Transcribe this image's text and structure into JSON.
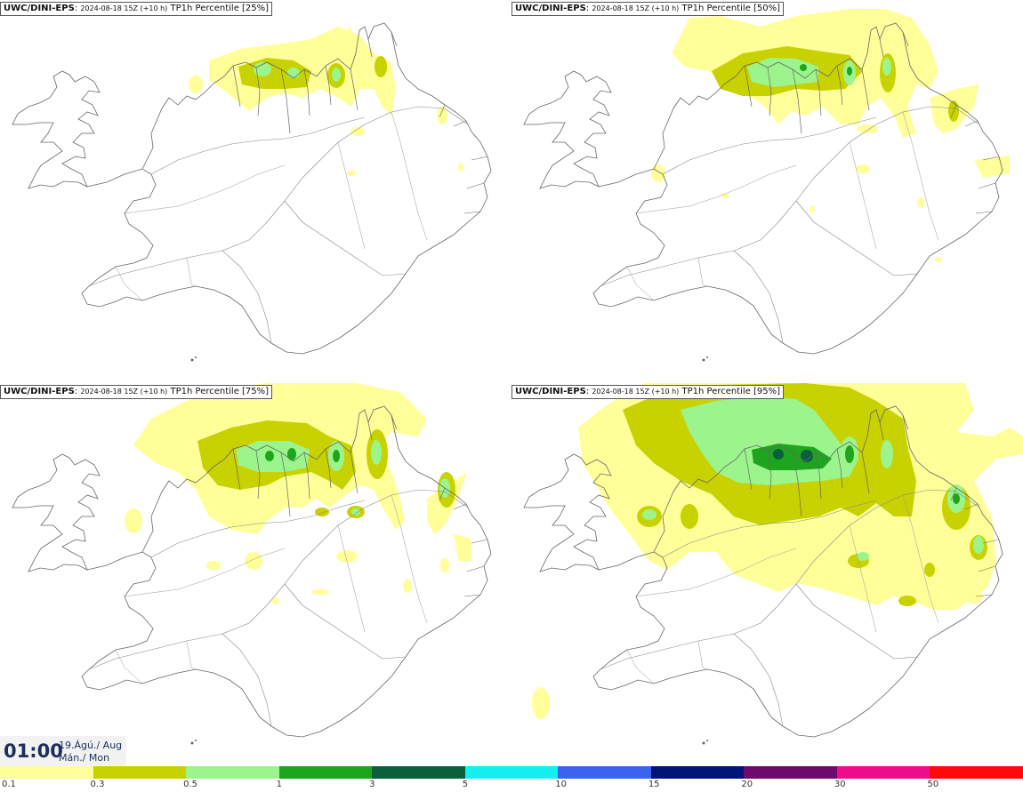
{
  "panels": [
    {
      "model": "UWC/DINI-EPS",
      "run": "2024-08-18 15Z (+10 h)",
      "label": "TP1h Percentile [25%]"
    },
    {
      "model": "UWC/DINI-EPS",
      "run": "2024-08-18 15Z (+10 h)",
      "label": "TP1h Percentile [50%]"
    },
    {
      "model": "UWC/DINI-EPS",
      "run": "2024-08-18 15Z (+10 h)",
      "label": "TP1h Percentile [75%]"
    },
    {
      "model": "UWC/DINI-EPS",
      "run": "2024-08-18 15Z (+10 h)",
      "label": "TP1h Percentile [95%]"
    }
  ],
  "valid_time": {
    "hour": "01:00",
    "date": "19.Ágú./ Aug",
    "weekday": "Mán./ Mon"
  },
  "legend": {
    "ticks": [
      "0.1",
      "0.3",
      "0.5",
      "1",
      "3",
      "5",
      "10",
      "15",
      "20",
      "30",
      "50"
    ],
    "colors": [
      "#ffff99",
      "#c8d200",
      "#9cf58c",
      "#1ea51e",
      "#0a5f3c",
      "#14f0f0",
      "#3a64f0",
      "#001478",
      "#6e0a6e",
      "#f00a8c",
      "#ff0a0a"
    ]
  }
}
